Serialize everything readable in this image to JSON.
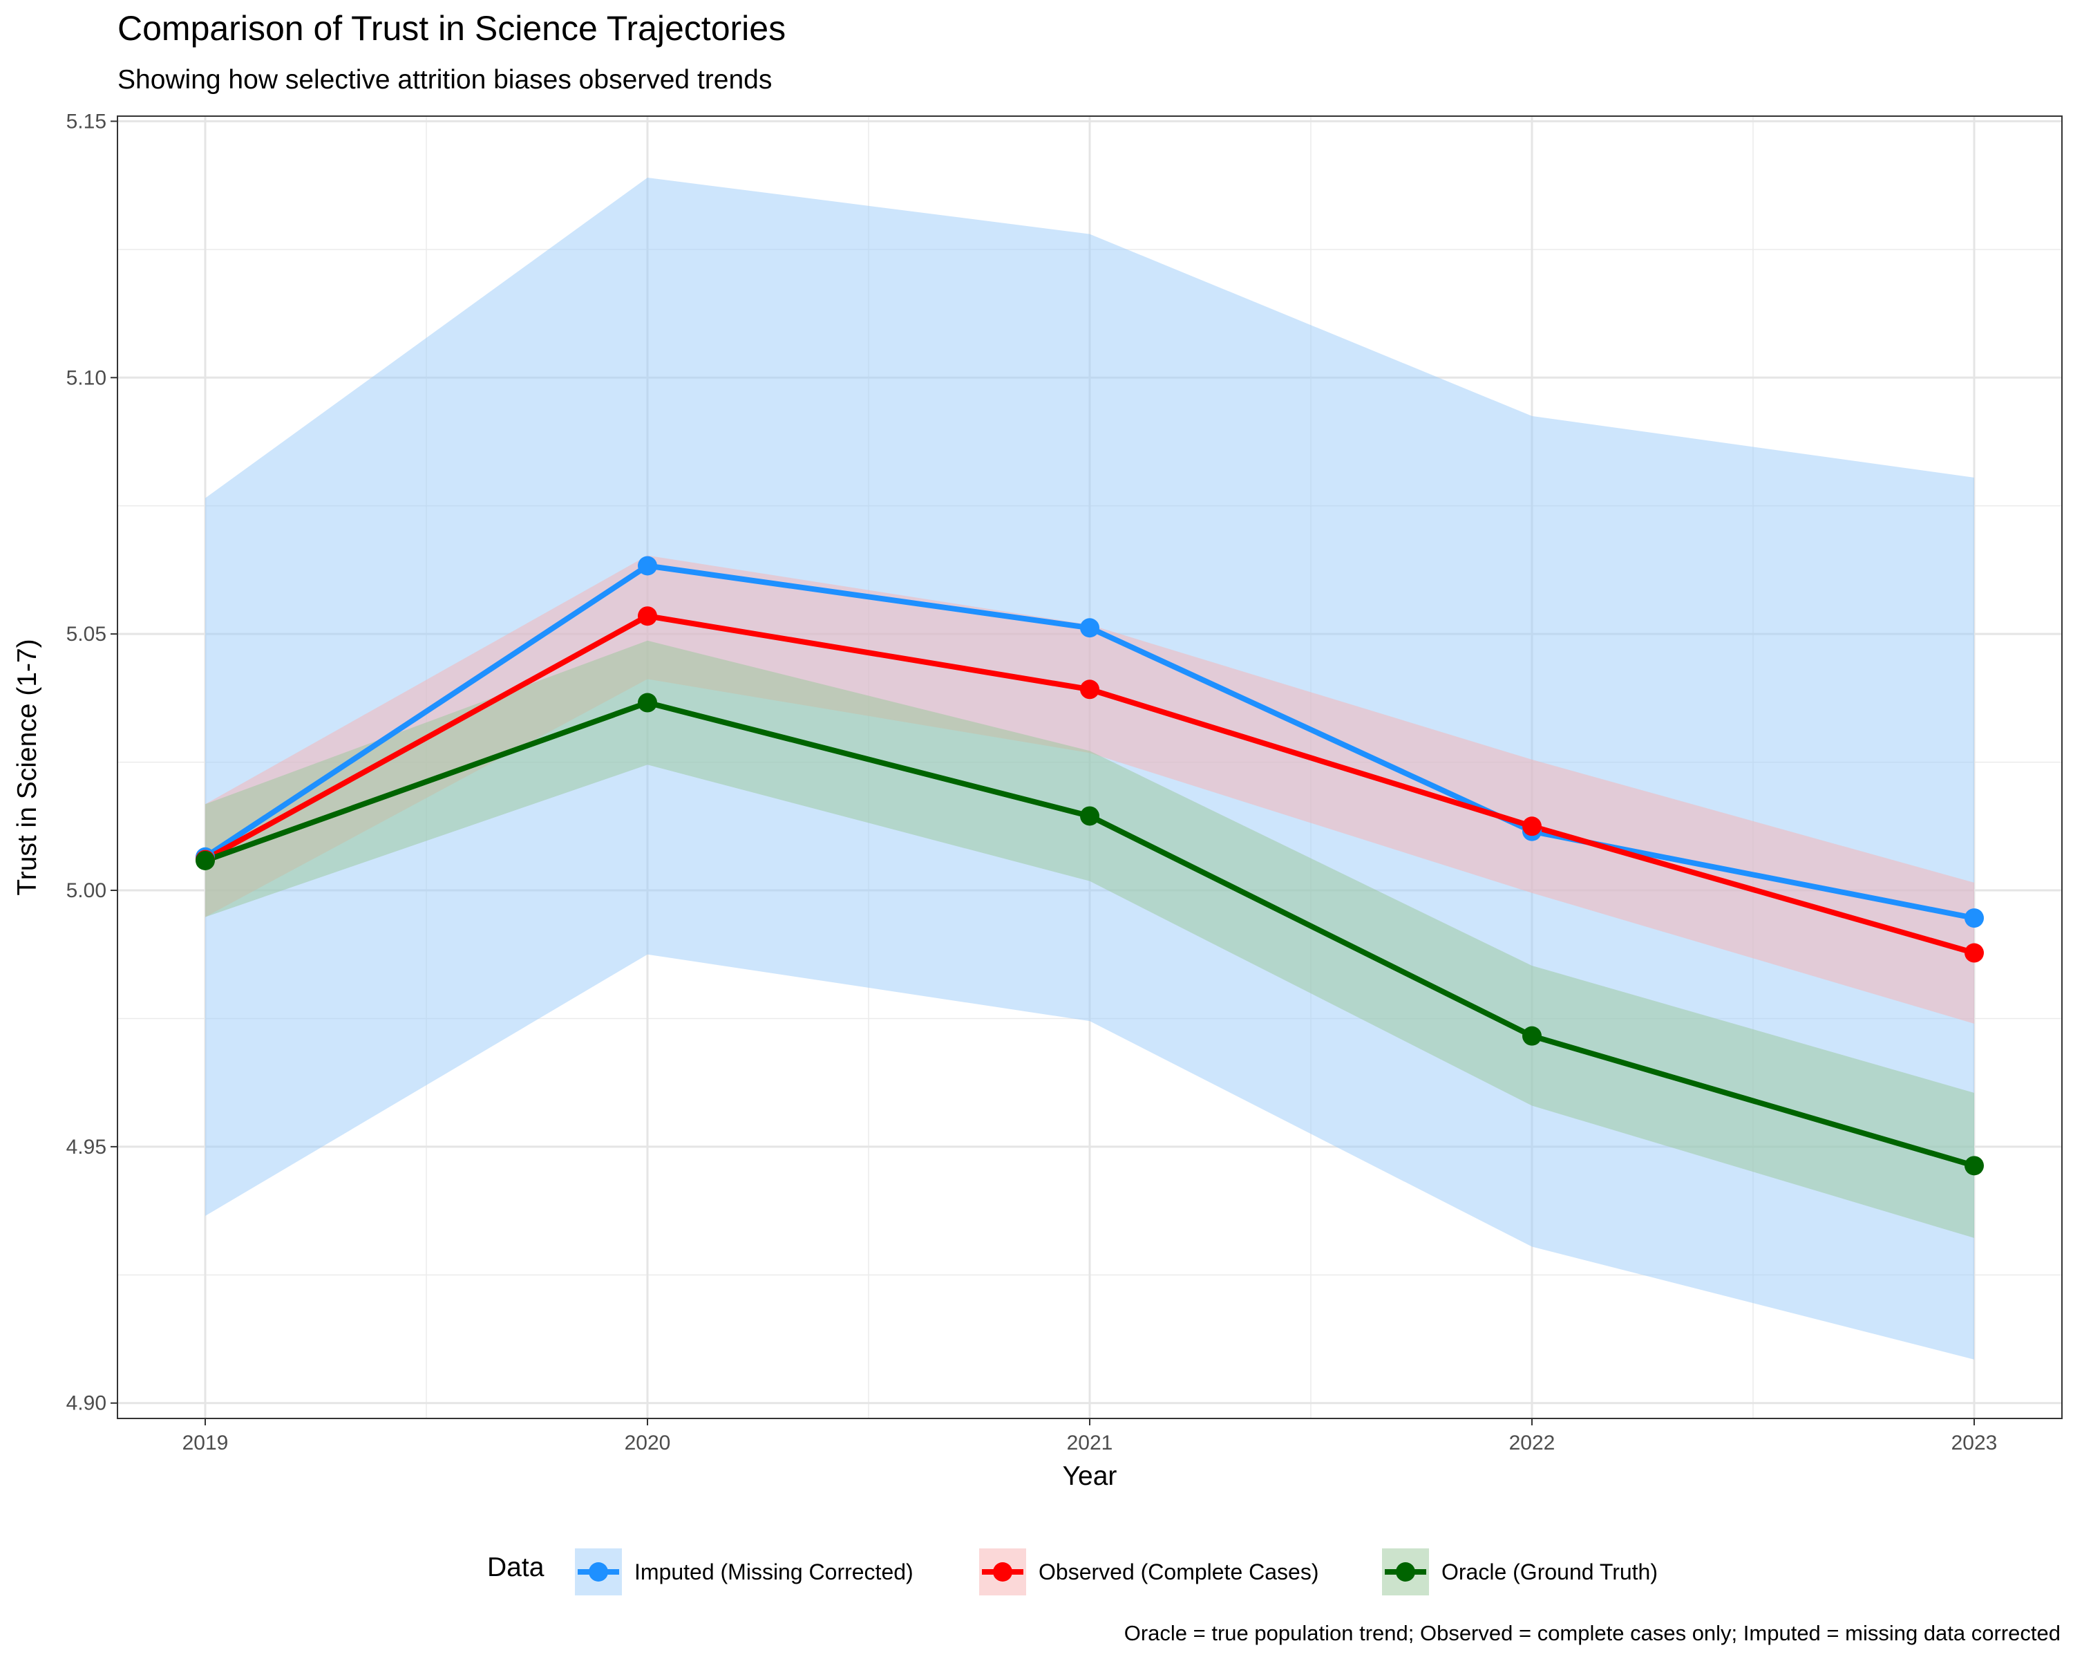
{
  "chart_data": {
    "type": "line",
    "title": "Comparison of Trust in Science Trajectories",
    "subtitle": "Showing how selective attrition biases observed trends",
    "xlabel": "Year",
    "ylabel": "Trust in Science (1-7)",
    "caption": "Oracle = true population trend; Observed = complete cases only; Imputed = missing data corrected",
    "x": [
      "2019",
      "2020",
      "2021",
      "2022",
      "2023"
    ],
    "ylim": [
      4.897,
      5.151
    ],
    "yticks": [
      4.9,
      4.95,
      5.0,
      5.05,
      5.1,
      5.15
    ],
    "ytick_labels": [
      "4.90",
      "4.95",
      "5.00",
      "5.05",
      "5.10",
      "5.15"
    ],
    "grid": true,
    "legend": {
      "title": "Data",
      "position": "bottom"
    },
    "series": [
      {
        "name": "Imputed (Missing Corrected)",
        "color": "#1E90FF",
        "band_color": "#9CCBFA",
        "values": [
          5.0065,
          5.0633,
          5.0512,
          5.0115,
          4.9946
        ],
        "lower": [
          4.9365,
          4.9875,
          4.9745,
          4.9305,
          4.9085
        ],
        "upper": [
          5.0765,
          5.139,
          5.128,
          5.0925,
          5.0805
        ]
      },
      {
        "name": "Observed (Complete Cases)",
        "color": "#FF0000",
        "band_color": "#F7B2B2",
        "values": [
          5.006,
          5.0535,
          5.0392,
          5.0125,
          4.9878
        ],
        "lower": [
          4.9948,
          5.0412,
          5.0268,
          4.9995,
          4.974
        ],
        "upper": [
          5.0168,
          5.0653,
          5.0518,
          5.0255,
          5.0015
        ]
      },
      {
        "name": "Oracle (Ground Truth)",
        "color": "#006400",
        "band_color": "#99C799",
        "values": [
          5.0058,
          5.0366,
          5.0145,
          4.9716,
          4.9463
        ],
        "lower": [
          4.9948,
          5.0245,
          5.0018,
          4.958,
          4.9322
        ],
        "upper": [
          5.0168,
          5.0487,
          5.0272,
          4.9853,
          4.9605
        ]
      }
    ]
  }
}
